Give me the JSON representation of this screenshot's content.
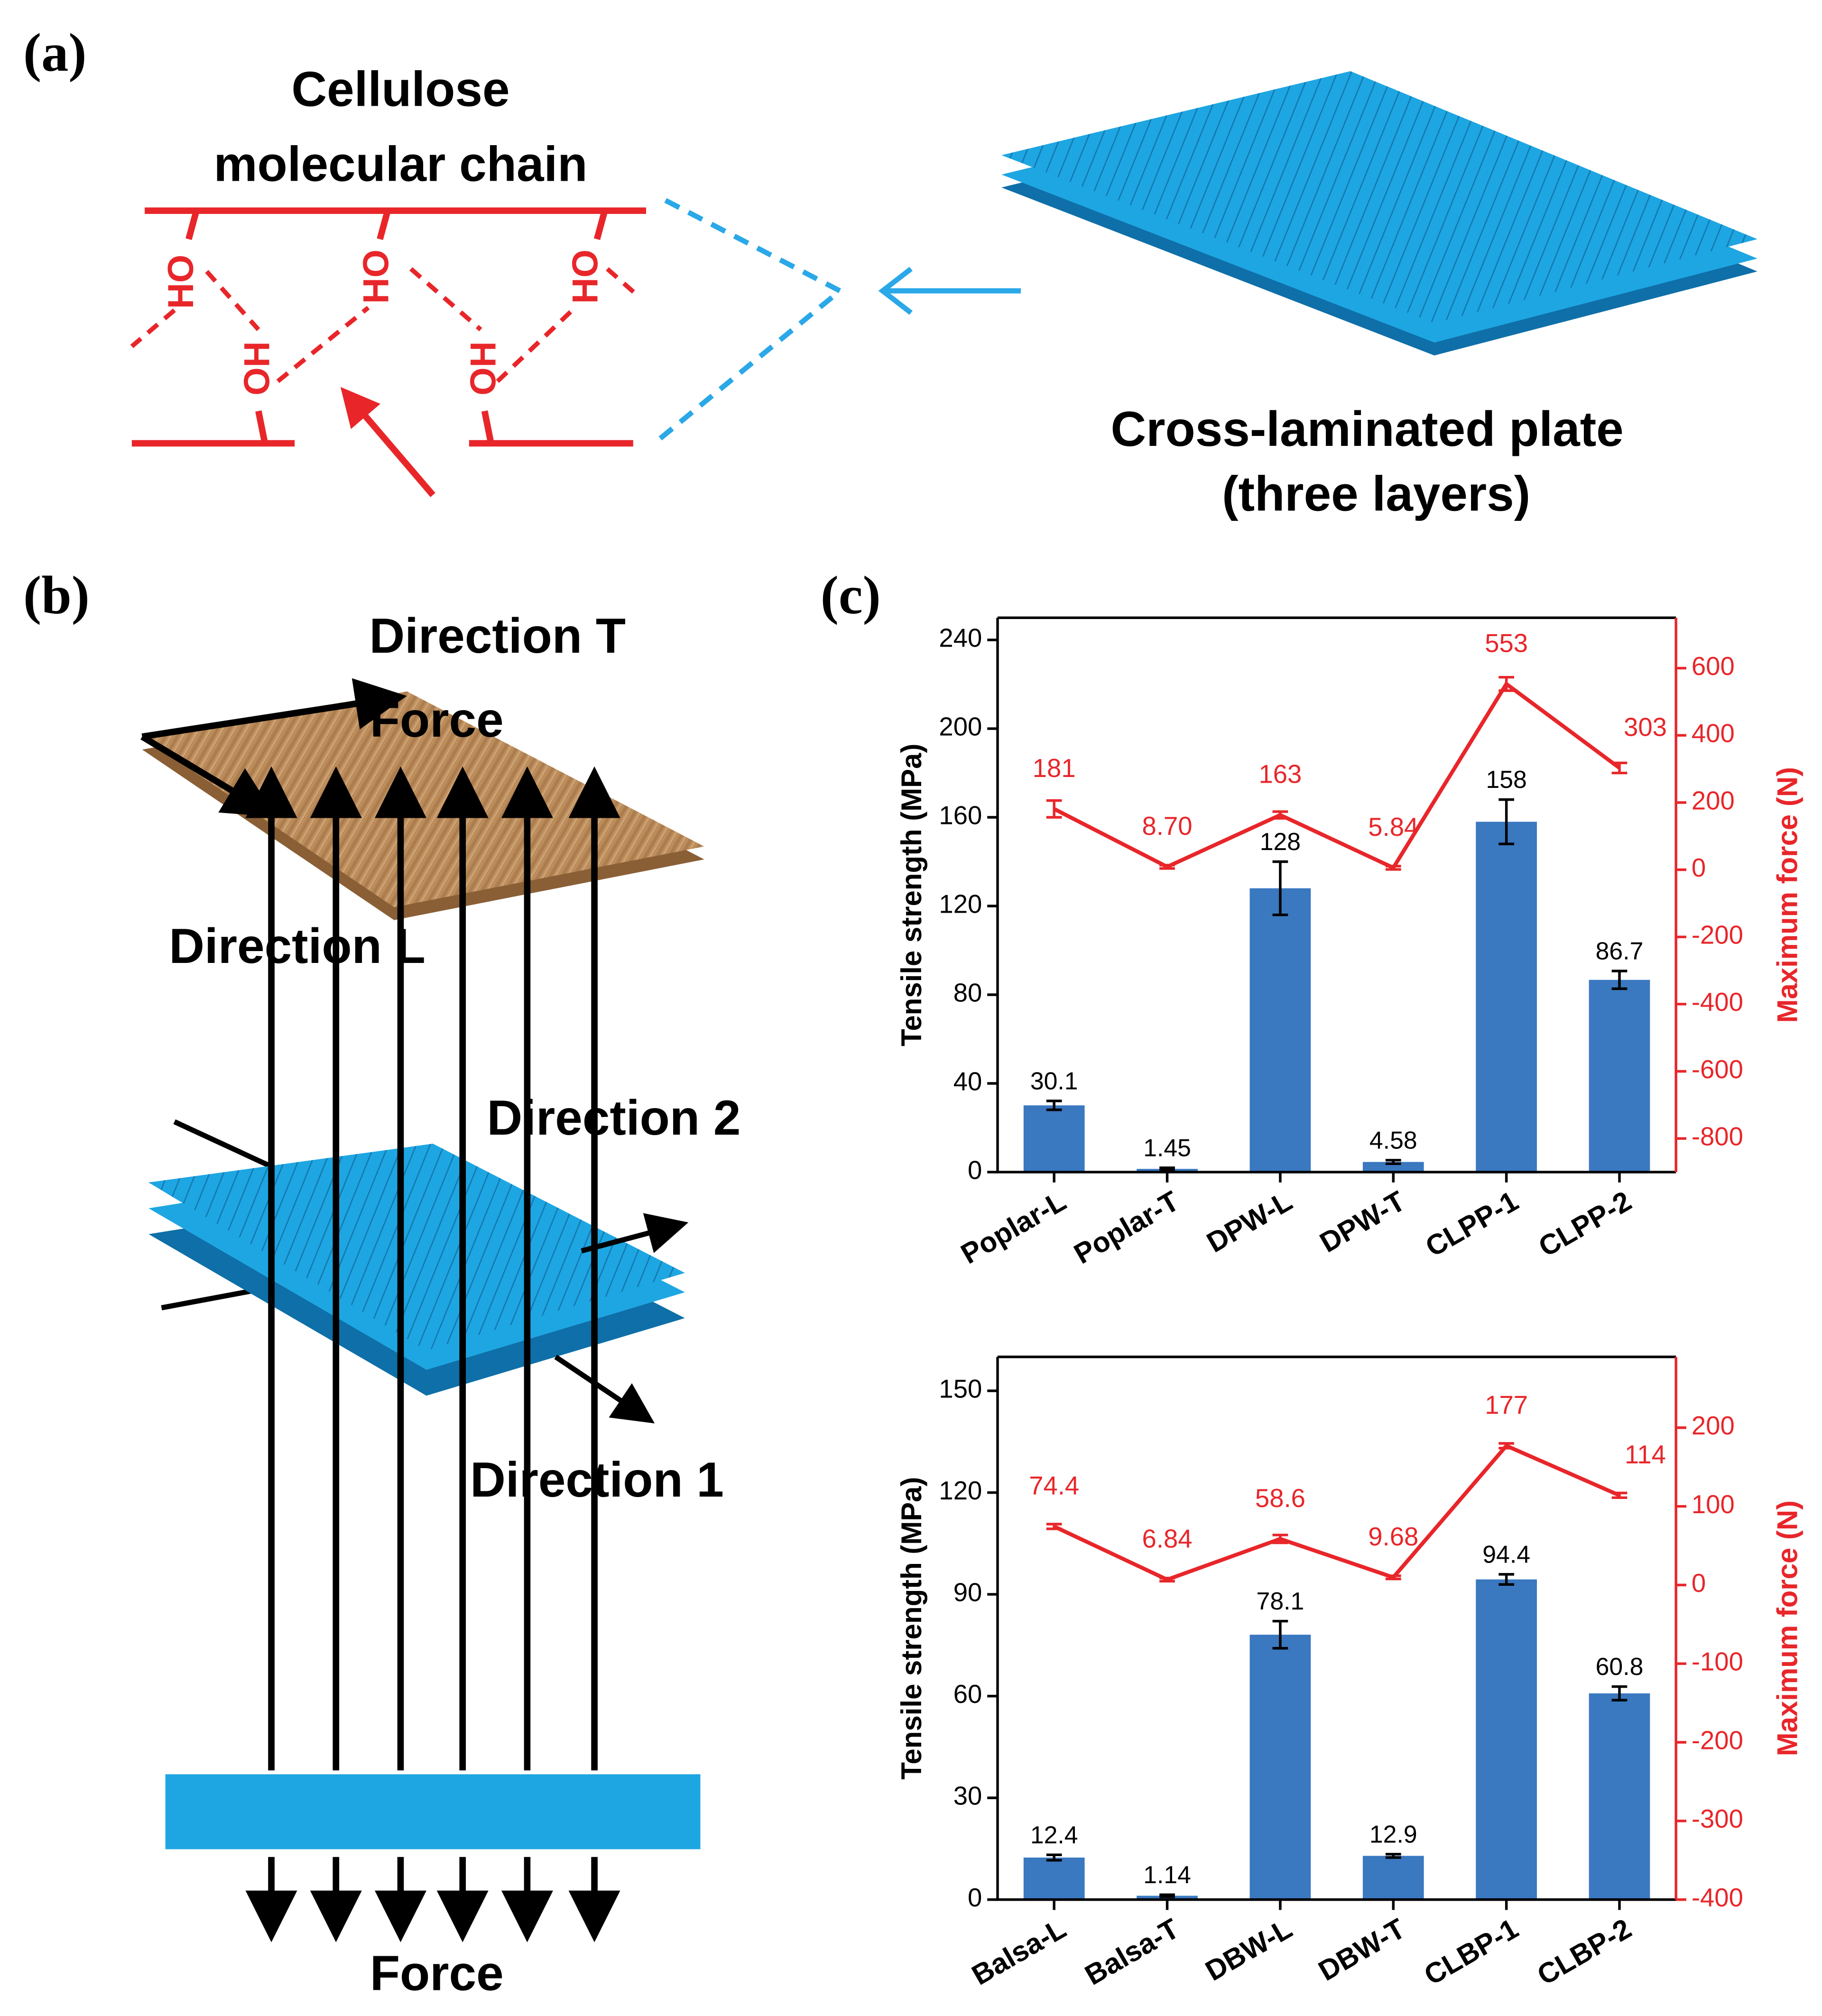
{
  "diagram": {
    "panel_a": "(a)",
    "panel_b": "(b)",
    "panel_c": "(c)",
    "chain_title": [
      "Cellulose",
      "molecular chain"
    ],
    "hydroxyl": [
      "HO",
      "HO",
      "HO",
      "OH",
      "OH"
    ],
    "plate_title": [
      "Cross-laminated plate",
      "(three layers)"
    ],
    "direction_t": "Direction T",
    "direction_l": "Direction L",
    "direction_2": "Direction 2",
    "direction_1": "Direction 1",
    "force_top": "Force",
    "force_bottom": "Force"
  },
  "chart_data": [
    {
      "type": "bar",
      "ylabel": "Tensile strength (MPa)",
      "y2label": "Maximum force (N)",
      "categories": [
        "Poplar-L",
        "Poplar-T",
        "DPW-L",
        "DPW-T",
        "CLPP-1",
        "CLPP-2"
      ],
      "ylim": [
        0,
        250
      ],
      "yticks": [
        0,
        40,
        80,
        120,
        160,
        200,
        240
      ],
      "y2lim": [
        -900,
        750
      ],
      "y2ticks": [
        -800,
        -600,
        -400,
        -200,
        0,
        200,
        400,
        600
      ],
      "series": [
        {
          "type": "bar",
          "color": "#3a78c0",
          "values": [
            30.1,
            1.45,
            128,
            4.58,
            158,
            86.7
          ],
          "errors": [
            2,
            0.5,
            12,
            0.8,
            10,
            4
          ]
        },
        {
          "type": "line",
          "axis": "y2",
          "color": "#e8262a",
          "values": [
            181,
            8.7,
            163,
            5.84,
            553,
            303
          ],
          "value_labels": [
            "181",
            "8.70",
            "163",
            "5.84",
            "553",
            "303"
          ],
          "errors": [
            25,
            5,
            10,
            5,
            20,
            15
          ]
        }
      ]
    },
    {
      "type": "bar",
      "ylabel": "Tensile strength (MPa)",
      "y2label": "Maximum force (N)",
      "categories": [
        "Balsa-L",
        "Balsa-T",
        "DBW-L",
        "DBW-T",
        "CLBP-1",
        "CLBP-2"
      ],
      "ylim": [
        0,
        160
      ],
      "yticks": [
        0,
        30,
        60,
        90,
        120,
        150
      ],
      "y2lim": [
        -400,
        290
      ],
      "y2ticks": [
        -400,
        -300,
        -200,
        -100,
        0,
        100,
        200
      ],
      "series": [
        {
          "type": "bar",
          "color": "#3a78c0",
          "values": [
            12.4,
            1.14,
            78.1,
            12.9,
            94.4,
            60.8
          ],
          "errors": [
            0.8,
            0.3,
            4,
            0.5,
            1.5,
            2
          ]
        },
        {
          "type": "line",
          "axis": "y2",
          "color": "#e8262a",
          "values": [
            74.4,
            6.84,
            58.6,
            9.68,
            177,
            114
          ],
          "errors": [
            3,
            2,
            5,
            2,
            3,
            3
          ]
        }
      ]
    }
  ]
}
